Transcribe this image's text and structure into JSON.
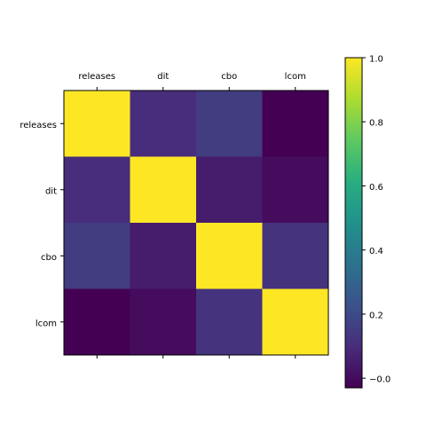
{
  "chart_data": {
    "type": "heatmap",
    "title": "",
    "xlabel": "",
    "ylabel": "",
    "x_categories": [
      "releases",
      "dit",
      "cbo",
      "lcom"
    ],
    "y_categories": [
      "releases",
      "dit",
      "cbo",
      "lcom"
    ],
    "x_tick_position": "top",
    "values": [
      [
        1.0,
        0.1,
        0.15,
        -0.03
      ],
      [
        0.1,
        1.0,
        0.05,
        0.0
      ],
      [
        0.15,
        0.05,
        1.0,
        0.12
      ],
      [
        -0.03,
        0.0,
        0.12,
        1.0
      ]
    ],
    "colormap": "viridis",
    "vmin": -0.03,
    "vmax": 1.0,
    "colorbar": {
      "ticks": [
        -0.0,
        0.2,
        0.4,
        0.6,
        0.8,
        1.0
      ],
      "tick_labels": [
        "−0.0",
        "0.2",
        "0.4",
        "0.6",
        "0.8",
        "1.0"
      ]
    },
    "grid": false
  }
}
